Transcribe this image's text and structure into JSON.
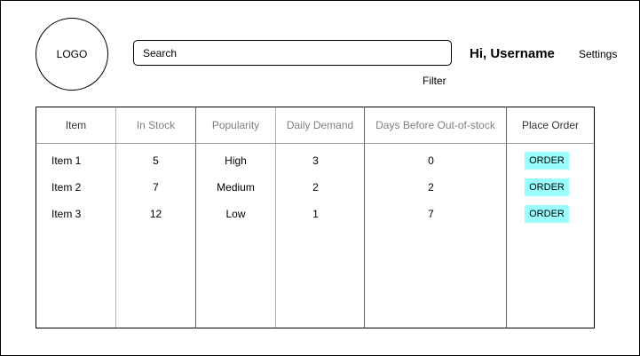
{
  "header": {
    "logo_text": "LOGO",
    "search_placeholder": "Search",
    "filter_label": "Filter",
    "greeting": "Hi, Username",
    "settings_label": "Settings"
  },
  "table": {
    "columns": [
      "Item",
      "In Stock",
      "Popularity",
      "Daily Demand",
      "Days Before Out-of-stock",
      "Place Order"
    ],
    "rows": [
      {
        "item": "Item 1",
        "in_stock": "5",
        "popularity": "High",
        "daily_demand": "3",
        "days_before": "0",
        "order_label": "ORDER"
      },
      {
        "item": "Item 2",
        "in_stock": "7",
        "popularity": "Medium",
        "daily_demand": "2",
        "days_before": "2",
        "order_label": "ORDER"
      },
      {
        "item": "Item 3",
        "in_stock": "12",
        "popularity": "Low",
        "daily_demand": "1",
        "days_before": "7",
        "order_label": "ORDER"
      }
    ]
  },
  "colors": {
    "order_button_bg": "#99ffff",
    "muted_header_text": "#808080"
  }
}
